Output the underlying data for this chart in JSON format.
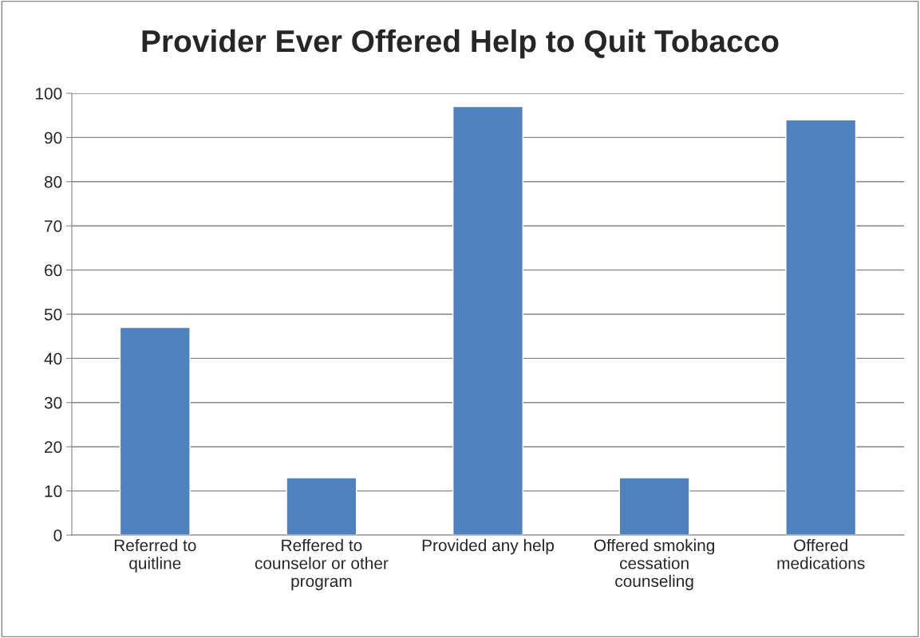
{
  "chart_data": {
    "type": "bar",
    "title": "Provider Ever Offered Help to Quit Tobacco",
    "categories": [
      "Referred to\nquitline",
      "Reffered to\ncounselor or other\nprogram",
      "Provided any help",
      "Offered smoking\ncessation\ncounseling",
      "Offered\nmedications"
    ],
    "values": [
      47,
      13,
      97,
      13,
      94
    ],
    "color": "#4f81bd",
    "ylim": [
      0,
      100
    ],
    "yticks": [
      0,
      10,
      20,
      30,
      40,
      50,
      60,
      70,
      80,
      90,
      100
    ],
    "grid": "y",
    "legend": false
  }
}
